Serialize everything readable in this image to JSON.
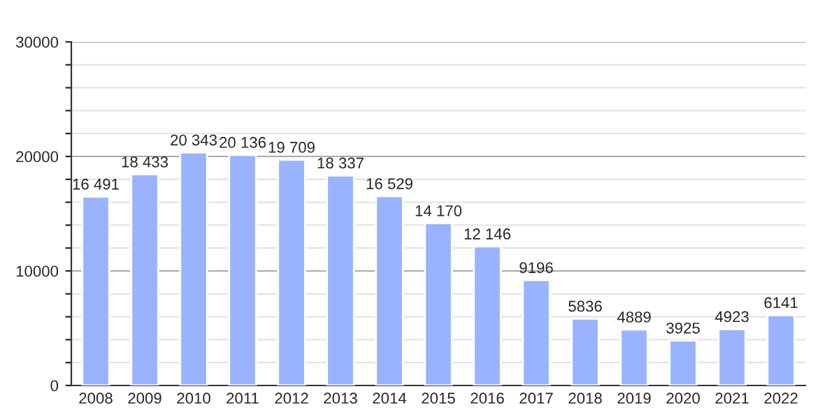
{
  "chart_data": {
    "type": "bar",
    "categories": [
      "2008",
      "2009",
      "2010",
      "2011",
      "2012",
      "2013",
      "2014",
      "2015",
      "2016",
      "2017",
      "2018",
      "2019",
      "2020",
      "2021",
      "2022"
    ],
    "values": [
      16491,
      18433,
      20343,
      20136,
      19709,
      18337,
      16529,
      14170,
      12146,
      9196,
      5836,
      4889,
      3925,
      4923,
      6141
    ],
    "value_labels": [
      "16 491",
      "18 433",
      "20 343",
      "20 136",
      "19 709",
      "18 337",
      "16 529",
      "14 170",
      "12 146",
      "9196",
      "5836",
      "4889",
      "3925",
      "4923",
      "6141"
    ],
    "color": "#99b3ff",
    "ylim": [
      0,
      30000
    ],
    "yticks": [
      0,
      {
        "value": 2000,
        "label": null
      },
      {
        "value": 4000,
        "label": null
      },
      {
        "value": 6000,
        "label": null
      },
      {
        "value": 8000,
        "label": null
      },
      10000,
      {
        "value": 12000,
        "label": null
      },
      {
        "value": 14000,
        "label": null
      },
      {
        "value": 16000,
        "label": null
      },
      {
        "value": 18000,
        "label": null
      },
      20000,
      {
        "value": 22000,
        "label": null
      },
      {
        "value": 24000,
        "label": null
      },
      {
        "value": 26000,
        "label": null
      },
      {
        "value": 28000,
        "label": null
      },
      30000
    ],
    "grid": "y"
  }
}
